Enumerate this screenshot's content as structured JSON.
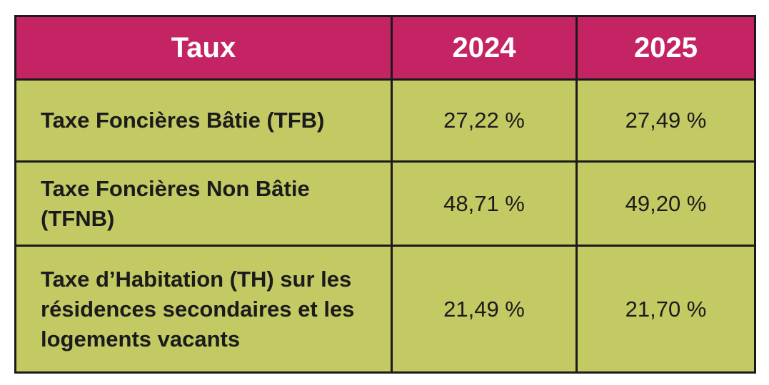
{
  "table": {
    "headers": [
      "Taux",
      "2024",
      "2025"
    ],
    "rows": [
      {
        "label": "Taxe Foncières Bâtie (TFB)",
        "y2024": "27,22 %",
        "y2025": "27,49 %"
      },
      {
        "label": "Taxe Foncières Non Bâtie (TFNB)",
        "y2024": "48,71 %",
        "y2025": "49,20 %"
      },
      {
        "label": "Taxe d’Habitation (TH) sur les résidences secondaires et les logements vacants",
        "y2024": "21,49 %",
        "y2025": "21,70 %"
      }
    ]
  },
  "colors": {
    "header_bg": "#c42463",
    "body_bg": "#c3c963",
    "border": "#1a1a1a"
  }
}
